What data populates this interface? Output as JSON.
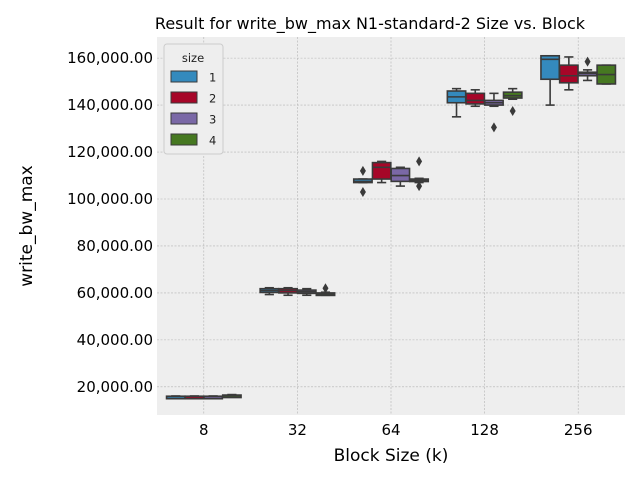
{
  "chart_data": {
    "type": "box",
    "title": "Result for write_bw_max N1-standard-2 Size vs. Block",
    "xlabel": "Block Size (k)",
    "ylabel": "write_bw_max",
    "categories": [
      "8",
      "32",
      "64",
      "128",
      "256"
    ],
    "ylim": [
      8000,
      169000
    ],
    "yticks": [
      20000,
      40000,
      60000,
      80000,
      100000,
      120000,
      140000,
      160000
    ],
    "ytick_labels": [
      "20,000.00",
      "40,000.00",
      "60,000.00",
      "80,000.00",
      "100,000.00",
      "120,000.00",
      "140,000.00",
      "160,000.00"
    ],
    "grid": true,
    "legend": {
      "title": "size",
      "position": "top-left"
    },
    "series": [
      {
        "name": "1",
        "color": "#348abd",
        "boxes": [
          {
            "whislo": 15700,
            "q1": 15800,
            "med": 15900,
            "q3": 16000,
            "whishi": 16100,
            "fliers": []
          },
          {
            "whislo": 59300,
            "q1": 60200,
            "med": 61000,
            "q3": 61800,
            "whishi": 62200,
            "fliers": []
          },
          {
            "whislo": 107000,
            "q1": 107000,
            "med": 107500,
            "q3": 108500,
            "whishi": 108500,
            "fliers": [
              103000,
              112000
            ]
          },
          {
            "whislo": 135000,
            "q1": 141000,
            "med": 143500,
            "q3": 146000,
            "whishi": 147000,
            "fliers": []
          },
          {
            "whislo": 140000,
            "q1": 151000,
            "med": 159500,
            "q3": 161000,
            "whishi": 161000,
            "fliers": []
          }
        ]
      },
      {
        "name": "2",
        "color": "#a60628",
        "boxes": [
          {
            "whislo": 15700,
            "q1": 15800,
            "med": 15900,
            "q3": 16000,
            "whishi": 16100,
            "fliers": []
          },
          {
            "whislo": 59000,
            "q1": 60000,
            "med": 61000,
            "q3": 61800,
            "whishi": 62200,
            "fliers": []
          },
          {
            "whislo": 107000,
            "q1": 108500,
            "med": 113500,
            "q3": 115500,
            "whishi": 116000,
            "fliers": []
          },
          {
            "whislo": 139500,
            "q1": 140500,
            "med": 142000,
            "q3": 145000,
            "whishi": 146500,
            "fliers": []
          },
          {
            "whislo": 146500,
            "q1": 149500,
            "med": 152500,
            "q3": 157000,
            "whishi": 160500,
            "fliers": []
          }
        ]
      },
      {
        "name": "3",
        "color": "#7a68a6",
        "boxes": [
          {
            "whislo": 15700,
            "q1": 15800,
            "med": 15900,
            "q3": 16000,
            "whishi": 16100,
            "fliers": []
          },
          {
            "whislo": 59000,
            "q1": 59800,
            "med": 60500,
            "q3": 61200,
            "whishi": 61800,
            "fliers": []
          },
          {
            "whislo": 105500,
            "q1": 107500,
            "med": 110000,
            "q3": 113000,
            "whishi": 113500,
            "fliers": []
          },
          {
            "whislo": 139500,
            "q1": 140000,
            "med": 141000,
            "q3": 142000,
            "whishi": 145000,
            "fliers": [
              130500
            ]
          },
          {
            "whislo": 150500,
            "q1": 152500,
            "med": 153500,
            "q3": 154000,
            "whishi": 155000,
            "fliers": [
              158500
            ]
          }
        ]
      },
      {
        "name": "4",
        "color": "#467821",
        "boxes": [
          {
            "whislo": 15900,
            "q1": 16000,
            "med": 16200,
            "q3": 16500,
            "whishi": 16700,
            "fliers": []
          },
          {
            "whislo": 59000,
            "q1": 59300,
            "med": 59500,
            "q3": 60000,
            "whishi": 60300,
            "fliers": [
              62000
            ]
          },
          {
            "whislo": 107000,
            "q1": 107500,
            "med": 108000,
            "q3": 108500,
            "whishi": 108800,
            "fliers": [
              105500,
              116000
            ]
          },
          {
            "whislo": 142500,
            "q1": 143000,
            "med": 144000,
            "q3": 145500,
            "whishi": 147000,
            "fliers": [
              137500
            ]
          },
          {
            "whislo": 149000,
            "q1": 149000,
            "med": 153000,
            "q3": 157000,
            "whishi": 157000,
            "fliers": []
          }
        ]
      }
    ]
  }
}
